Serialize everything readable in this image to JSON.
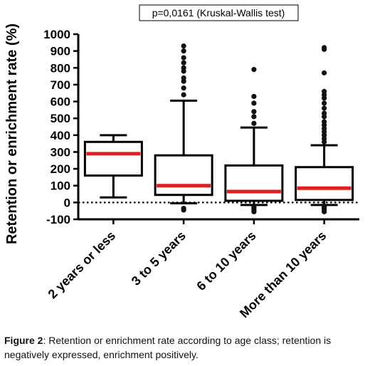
{
  "chart_data": {
    "type": "box",
    "annotation": "p=0,0161 (Kruskal-Wallis test)",
    "ylabel": "Retention or enrichment rate (%)",
    "ylim": [
      -100,
      1000
    ],
    "yticks": [
      -100,
      0,
      100,
      200,
      300,
      400,
      500,
      600,
      700,
      800,
      900,
      1000
    ],
    "reference_line": 0,
    "median_color": "#e02020",
    "categories": [
      "2 years or less",
      "3 to 5 years",
      "6 to 10 years",
      "More than 10 years"
    ],
    "boxes": [
      {
        "whisker_low": 30,
        "q1": 160,
        "median": 290,
        "q3": 360,
        "whisker_high": 400,
        "outliers": []
      },
      {
        "whisker_low": -5,
        "q1": 45,
        "median": 100,
        "q3": 280,
        "whisker_high": 605,
        "outliers": [
          -45,
          -35,
          640,
          680,
          720,
          740,
          780,
          800,
          830,
          860,
          900,
          930
        ]
      },
      {
        "whisker_low": -15,
        "q1": 10,
        "median": 65,
        "q3": 220,
        "whisker_high": 445,
        "outliers": [
          -55,
          -45,
          -35,
          -25,
          470,
          510,
          540,
          590,
          630,
          790
        ]
      },
      {
        "whisker_low": -15,
        "q1": 15,
        "median": 85,
        "q3": 210,
        "whisker_high": 340,
        "outliers": [
          -55,
          -45,
          -35,
          -25,
          360,
          380,
          400,
          420,
          440,
          460,
          480,
          510,
          530,
          560,
          590,
          620,
          640,
          660,
          770,
          910,
          920
        ]
      }
    ]
  },
  "caption": {
    "label": "Figure 2",
    "text": ": Retention or enrichment rate according to age class; retention is negatively expressed, enrichment positively."
  }
}
